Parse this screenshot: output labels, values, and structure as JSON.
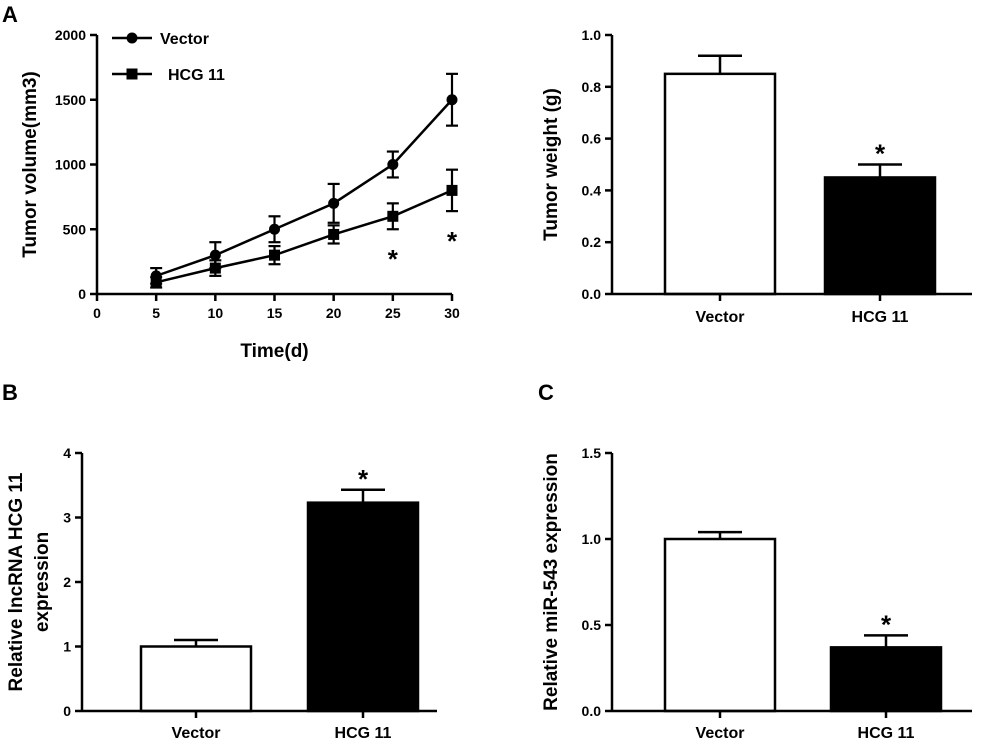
{
  "panels": {
    "A": "A",
    "B": "B",
    "C": "C"
  },
  "chart_data": [
    {
      "id": "A1",
      "type": "line",
      "xlabel": "Time(d)",
      "ylabel": "Tumor volume(mm3)",
      "xlim": [
        0,
        30
      ],
      "ylim": [
        0,
        2000
      ],
      "xticks": [
        0,
        5,
        10,
        15,
        20,
        25,
        30
      ],
      "yticks": [
        0,
        500,
        1000,
        1500,
        2000
      ],
      "legend_position": "top-left",
      "series": [
        {
          "name": "Vector",
          "marker": "circle",
          "x": [
            5,
            10,
            15,
            20,
            25,
            30
          ],
          "y": [
            140,
            300,
            500,
            700,
            1000,
            1500
          ],
          "err": [
            60,
            100,
            100,
            150,
            100,
            200
          ]
        },
        {
          "name": "HCG 11",
          "marker": "square",
          "x": [
            5,
            10,
            15,
            20,
            25,
            30
          ],
          "y": [
            90,
            200,
            300,
            460,
            600,
            800
          ],
          "err": [
            40,
            60,
            70,
            70,
            100,
            160
          ]
        }
      ],
      "annotations": [
        {
          "x": 25,
          "y": 340,
          "text": "*"
        },
        {
          "x": 30,
          "y": 480,
          "text": "*"
        }
      ]
    },
    {
      "id": "A2",
      "type": "bar",
      "ylabel": "Tumor weight (g)",
      "ylim": [
        0,
        1.0
      ],
      "yticks": [
        "0.0",
        "0.2",
        "0.4",
        "0.6",
        "0.8",
        "1.0"
      ],
      "categories": [
        "Vector",
        "HCG 11"
      ],
      "values": [
        0.85,
        0.45
      ],
      "errors": [
        0.07,
        0.05
      ],
      "fills": [
        "#ffffff",
        "#000000"
      ],
      "marks": [
        "",
        "*"
      ]
    },
    {
      "id": "B",
      "type": "bar",
      "ylabel": "Relative lncRNA HCG 11 expression",
      "ylabel_lines": [
        "Relative lncRNA HCG 11",
        "expression"
      ],
      "ylim": [
        0,
        4
      ],
      "yticks": [
        "0",
        "1",
        "2",
        "3",
        "4"
      ],
      "categories": [
        "Vector",
        "HCG 11"
      ],
      "values": [
        1.0,
        3.23
      ],
      "errors": [
        0.1,
        0.2
      ],
      "fills": [
        "#ffffff",
        "#000000"
      ],
      "marks": [
        "",
        "*"
      ]
    },
    {
      "id": "C",
      "type": "bar",
      "ylabel": "Relative miR-543 expression",
      "ylim": [
        0,
        1.5
      ],
      "yticks": [
        "0.0",
        "0.5",
        "1.0",
        "1.5"
      ],
      "categories": [
        "Vector",
        "HCG 11"
      ],
      "values": [
        1.0,
        0.37
      ],
      "errors": [
        0.04,
        0.07
      ],
      "fills": [
        "#ffffff",
        "#000000"
      ],
      "marks": [
        "",
        "*"
      ]
    }
  ]
}
